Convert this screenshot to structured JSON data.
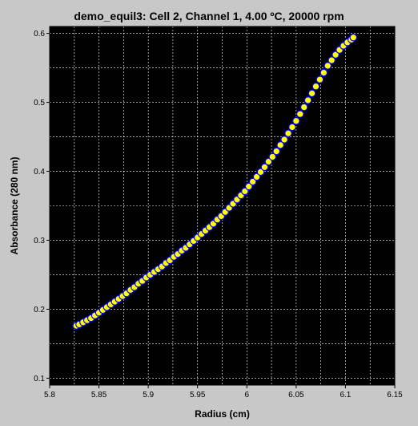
{
  "chart_data": {
    "type": "scatter",
    "title": "demo_equil3: Cell 2, Channel 1, 4.00 ºC, 20000 rpm",
    "xlabel": "Radius (cm)",
    "ylabel": "Absorbance (280 nm)",
    "xlim": [
      5.8,
      6.15
    ],
    "ylim": [
      0.09,
      0.61
    ],
    "xticks": [
      "5.8",
      "5.85",
      "5.9",
      "5.95",
      "6",
      "6.05",
      "6.1",
      "6.15"
    ],
    "yticks": [
      "0.1",
      "0.2",
      "0.3",
      "0.4",
      "0.5",
      "0.6"
    ],
    "grid": true,
    "background": "#000000",
    "grid_color": "#ffffff",
    "marker_fill": "#ffff00",
    "marker_edge": "#0000ff",
    "series": [
      {
        "x": [
          5.827,
          5.83,
          5.834,
          5.838,
          5.842,
          5.846,
          5.85,
          5.854,
          5.858,
          5.862,
          5.866,
          5.87,
          5.874,
          5.878,
          5.882,
          5.886,
          5.89,
          5.894,
          5.898,
          5.902,
          5.906,
          5.91,
          5.914,
          5.918,
          5.922,
          5.926,
          5.93,
          5.934,
          5.938,
          5.942,
          5.946,
          5.95,
          5.954,
          5.958,
          5.962,
          5.966,
          5.97,
          5.974,
          5.978,
          5.982,
          5.986,
          5.99,
          5.994,
          5.998,
          6.002,
          6.006,
          6.01,
          6.014,
          6.018,
          6.022,
          6.026,
          6.03,
          6.034,
          6.038,
          6.042,
          6.046,
          6.05,
          6.054,
          6.058,
          6.062,
          6.066,
          6.07,
          6.074,
          6.078,
          6.082,
          6.086,
          6.09,
          6.094,
          6.098,
          6.102,
          6.106,
          6.108
        ],
        "y": [
          0.176,
          0.178,
          0.181,
          0.184,
          0.187,
          0.191,
          0.195,
          0.199,
          0.203,
          0.207,
          0.211,
          0.215,
          0.219,
          0.223,
          0.228,
          0.232,
          0.237,
          0.241,
          0.246,
          0.25,
          0.254,
          0.258,
          0.262,
          0.267,
          0.271,
          0.276,
          0.28,
          0.285,
          0.289,
          0.294,
          0.299,
          0.304,
          0.309,
          0.314,
          0.319,
          0.324,
          0.33,
          0.335,
          0.341,
          0.347,
          0.353,
          0.359,
          0.365,
          0.371,
          0.378,
          0.385,
          0.392,
          0.399,
          0.406,
          0.414,
          0.421,
          0.429,
          0.438,
          0.446,
          0.455,
          0.464,
          0.473,
          0.483,
          0.493,
          0.503,
          0.513,
          0.523,
          0.533,
          0.543,
          0.553,
          0.561,
          0.569,
          0.576,
          0.582,
          0.587,
          0.591,
          0.594
        ]
      }
    ]
  }
}
